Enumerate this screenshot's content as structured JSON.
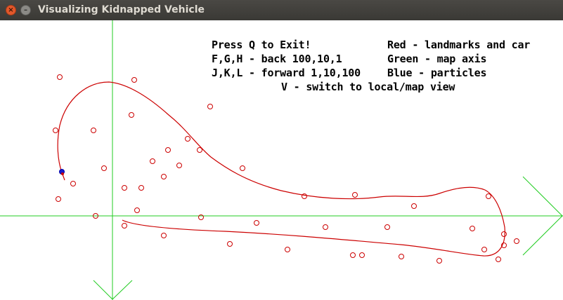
{
  "window": {
    "title": "Visualizing Kidnapped Vehicle"
  },
  "instructions": {
    "quit": "Press Q to Exit!",
    "back": "F,G,H - back 100,10,1",
    "forward": "J,K,L - forward 1,10,100",
    "switch_view": "V - switch to local/map view"
  },
  "legend": {
    "red": "Red - landmarks and car",
    "green": "Green - map axis",
    "blue": "Blue - particles"
  },
  "colors": {
    "landmarks": "#cc0000",
    "trajectory": "#cc0000",
    "axis": "#22cc22",
    "particles": "#0000cc",
    "car": "#cc0000"
  },
  "icons": {
    "close": "close-icon",
    "minimize": "minimize-icon"
  }
}
